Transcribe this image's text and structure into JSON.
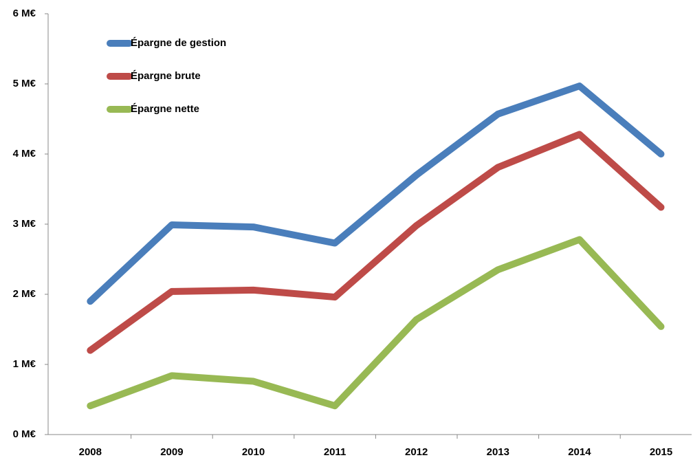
{
  "chart_data": {
    "type": "line",
    "categories": [
      "2008",
      "2009",
      "2010",
      "2011",
      "2012",
      "2013",
      "2014",
      "2015"
    ],
    "series": [
      {
        "name": "Épargne de gestion",
        "color": "#4a7ebb",
        "values": [
          1.9,
          2.99,
          2.96,
          2.73,
          3.7,
          4.57,
          4.97,
          4.0
        ]
      },
      {
        "name": "Épargne brute",
        "color": "#be4b48",
        "values": [
          1.2,
          2.04,
          2.06,
          1.96,
          2.98,
          3.81,
          4.28,
          3.24
        ]
      },
      {
        "name": "Épargne nette",
        "color": "#98b954",
        "values": [
          0.41,
          0.84,
          0.76,
          0.41,
          1.64,
          2.35,
          2.78,
          1.54
        ]
      }
    ],
    "ylim": [
      0,
      6
    ],
    "yticks": [
      {
        "value": 0,
        "label": "0 M€"
      },
      {
        "value": 1,
        "label": "1 M€"
      },
      {
        "value": 2,
        "label": "2 M€"
      },
      {
        "value": 3,
        "label": "3 M€"
      },
      {
        "value": 4,
        "label": "4 M€"
      },
      {
        "value": 5,
        "label": "5 M€"
      },
      {
        "value": 6,
        "label": "6 M€"
      }
    ],
    "grid": false,
    "legend": "top-left"
  }
}
